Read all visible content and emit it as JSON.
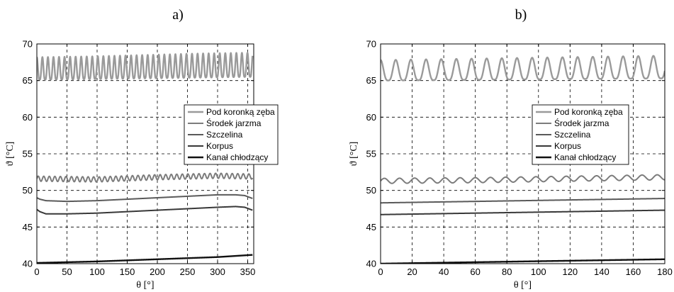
{
  "chart_data": [
    {
      "type": "line",
      "panel_label": "a)",
      "xlabel": "θ [°]",
      "ylabel": "ϑ [°C]",
      "xlim": [
        0,
        360
      ],
      "ylim": [
        40,
        70
      ],
      "x_ticks": [
        0,
        50,
        100,
        150,
        200,
        250,
        300,
        350
      ],
      "y_ticks": [
        40,
        45,
        50,
        55,
        60,
        65,
        70
      ],
      "grid": true,
      "legend_position": "right-middle",
      "series": [
        {
          "name": "Pod koronką zęba",
          "color": "#9a9a9a",
          "width": 2.4,
          "x": [
            0,
            90,
            180,
            270,
            350,
            358
          ],
          "y_upper": [
            68.2,
            68.3,
            68.5,
            68.7,
            68.8,
            68.8
          ],
          "y_lower": [
            65.1,
            65.2,
            65.3,
            65.4,
            65.5,
            65.5
          ],
          "period": 9.2
        },
        {
          "name": "Środek jarzma",
          "color": "#7c7c7c",
          "width": 2.0,
          "x": [
            0,
            100,
            200,
            300,
            358
          ],
          "y": [
            51.6,
            51.5,
            51.8,
            52.0,
            51.9
          ],
          "ripple_amplitude": 0.35,
          "period": 9.2
        },
        {
          "name": "Szczelina",
          "color": "#5a5a5a",
          "width": 2.0,
          "x": [
            0,
            5,
            15,
            50,
            100,
            150,
            200,
            250,
            300,
            330,
            345,
            358
          ],
          "y": [
            49.0,
            48.8,
            48.6,
            48.5,
            48.6,
            48.8,
            49.0,
            49.2,
            49.4,
            49.4,
            49.3,
            48.9
          ]
        },
        {
          "name": "Korpus",
          "color": "#383838",
          "width": 2.0,
          "x": [
            0,
            5,
            15,
            50,
            100,
            150,
            200,
            250,
            300,
            330,
            345,
            358
          ],
          "y": [
            47.4,
            47.1,
            46.8,
            46.8,
            46.9,
            47.1,
            47.3,
            47.5,
            47.7,
            47.8,
            47.7,
            47.3
          ]
        },
        {
          "name": "Kanał chłodzący",
          "color": "#111111",
          "width": 2.4,
          "x": [
            0,
            100,
            200,
            300,
            358
          ],
          "y": [
            40.1,
            40.3,
            40.6,
            40.9,
            41.2
          ]
        }
      ]
    },
    {
      "type": "line",
      "panel_label": "b)",
      "xlabel": "θ [°]",
      "ylabel": "ϑ [°C]",
      "xlim": [
        0,
        180
      ],
      "ylim": [
        40,
        70
      ],
      "x_ticks": [
        0,
        20,
        40,
        60,
        80,
        100,
        120,
        140,
        160,
        180
      ],
      "y_ticks": [
        40,
        45,
        50,
        55,
        60,
        65,
        70
      ],
      "grid": true,
      "legend_position": "right-middle",
      "series": [
        {
          "name": "Pod koronką zęba",
          "color": "#9a9a9a",
          "width": 2.4,
          "x": [
            0,
            60,
            120,
            180
          ],
          "y_upper": [
            67.8,
            68.0,
            68.2,
            68.4
          ],
          "y_lower": [
            65.0,
            65.1,
            65.2,
            65.3
          ],
          "period": 9.6
        },
        {
          "name": "Środek jarzma",
          "color": "#7c7c7c",
          "width": 2.0,
          "x": [
            0,
            60,
            120,
            180
          ],
          "y": [
            51.3,
            51.4,
            51.6,
            51.8
          ],
          "ripple_amplitude": 0.35,
          "period": 9.6
        },
        {
          "name": "Szczelina",
          "color": "#5a5a5a",
          "width": 2.0,
          "x": [
            0,
            60,
            120,
            180
          ],
          "y": [
            48.3,
            48.5,
            48.7,
            48.9
          ]
        },
        {
          "name": "Korpus",
          "color": "#383838",
          "width": 2.0,
          "x": [
            0,
            60,
            120,
            180
          ],
          "y": [
            46.7,
            46.9,
            47.1,
            47.3
          ]
        },
        {
          "name": "Kanał chłodzący",
          "color": "#111111",
          "width": 2.4,
          "x": [
            0,
            60,
            120,
            180
          ],
          "y": [
            40.0,
            40.2,
            40.4,
            40.6
          ]
        }
      ]
    }
  ]
}
